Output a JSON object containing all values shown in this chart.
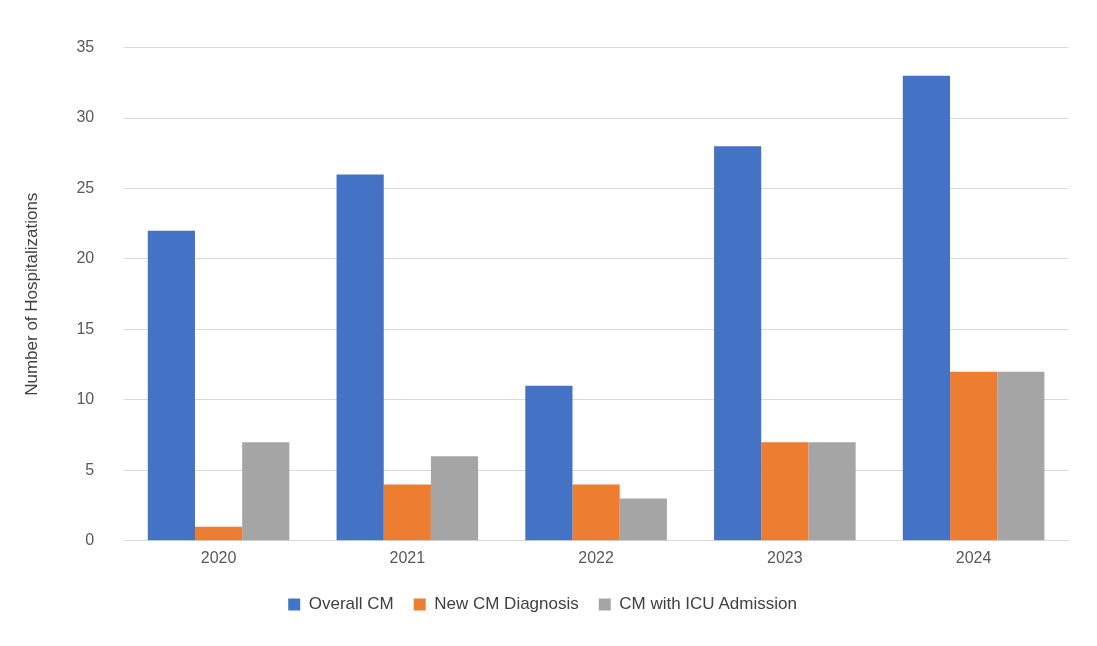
{
  "chart_data": {
    "type": "bar",
    "ylabel": "Number of Hospitalizations",
    "categories": [
      "2020",
      "2021",
      "2022",
      "2023",
      "2024"
    ],
    "series": [
      {
        "name": "Overall CM",
        "color": "#4472c4",
        "values": [
          22,
          26,
          11,
          28,
          33
        ]
      },
      {
        "name": "New CM Diagnosis",
        "color": "#ed7d31",
        "values": [
          1,
          4,
          4,
          7,
          12
        ]
      },
      {
        "name": "CM with ICU Admission",
        "color": "#a5a5a5",
        "values": [
          7,
          6,
          3,
          7,
          12
        ]
      }
    ],
    "ylim": [
      0,
      35
    ],
    "yticks": [
      0,
      5,
      10,
      15,
      20,
      25,
      30,
      35
    ],
    "grid": "y",
    "legend": "bottom"
  }
}
